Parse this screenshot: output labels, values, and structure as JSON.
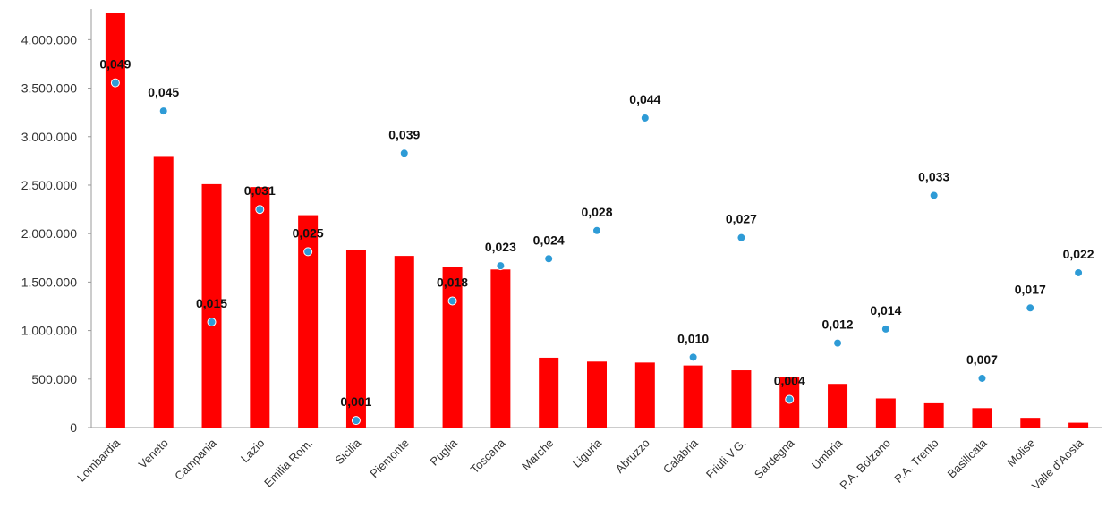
{
  "chart_data": {
    "type": "bar",
    "categories": [
      "Lombardia",
      "Veneto",
      "Campania",
      "Lazio",
      "Emilia Rom.",
      "Sicilia",
      "Piemonte",
      "Puglia",
      "Toscana",
      "Marche",
      "Liguria",
      "Abruzzo",
      "Calabria",
      "Friuli V.G.",
      "Sardegna",
      "Umbria",
      "P.A. Bolzano",
      "P.A. Trento",
      "Basilicata",
      "Molise",
      "Valle d'Aosta"
    ],
    "series": [
      {
        "type": "bar",
        "color": "#ff0000",
        "values": [
          4280000,
          2800000,
          2510000,
          2480000,
          2190000,
          1830000,
          1770000,
          1660000,
          1630000,
          720000,
          680000,
          670000,
          640000,
          590000,
          520000,
          450000,
          300000,
          250000,
          200000,
          100000,
          50000
        ]
      },
      {
        "type": "scatter",
        "axis": "y2",
        "color": "#2e9bd6",
        "values": [
          0.049,
          0.045,
          0.015,
          0.031,
          0.025,
          0.001,
          0.039,
          0.018,
          0.023,
          0.024,
          0.028,
          0.044,
          0.01,
          0.027,
          0.004,
          0.012,
          0.014,
          0.033,
          0.007,
          0.017,
          0.022
        ],
        "value_labels": [
          "0,049",
          "0,045",
          "0,015",
          "0,031",
          "0,025",
          "0,001",
          "0,039",
          "0,018",
          "0,023",
          "0,024",
          "0,028",
          "0,044",
          "0,010",
          "0,027",
          "0,004",
          "0,012",
          "0,014",
          "0,033",
          "0,007",
          "0,017",
          "0,022"
        ]
      }
    ],
    "ylim": [
      0,
      4280000
    ],
    "yticks": [
      {
        "value": 0,
        "label": "0"
      },
      {
        "value": 500000,
        "label": "500.000"
      },
      {
        "value": 1000000,
        "label": "1.000.000"
      },
      {
        "value": 1500000,
        "label": "1.500.000"
      },
      {
        "value": 2000000,
        "label": "2.000.000"
      },
      {
        "value": 2500000,
        "label": "2.500.000"
      },
      {
        "value": 3000000,
        "label": "3.000.000"
      },
      {
        "value": 3500000,
        "label": "3.500.000"
      },
      {
        "value": 4000000,
        "label": "4.000.000"
      }
    ],
    "y2lim": [
      0,
      0.059
    ],
    "grid": false
  }
}
